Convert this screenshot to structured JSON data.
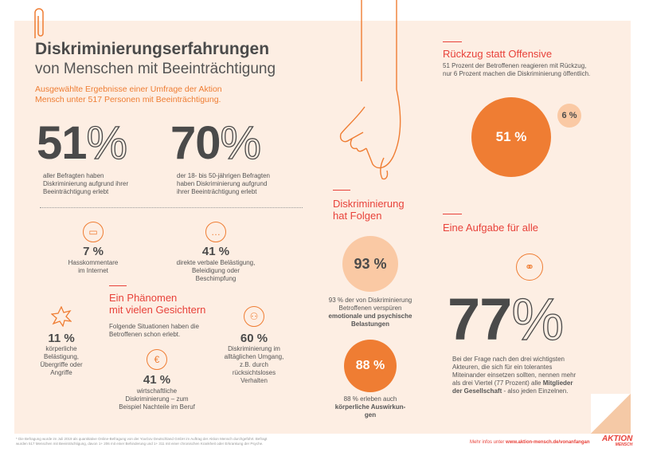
{
  "colors": {
    "accent": "#ef7d33",
    "red": "#e8423a",
    "panel": "#fdeee3",
    "text": "#4a4a4a"
  },
  "header": {
    "title": "Diskriminierungserfahrungen",
    "subtitle": "von Menschen mit Beeinträchtigung",
    "intro1": "Ausgewählte Ergebnisse einer Umfrage der Aktion",
    "intro2": "Mensch unter 517 Personen mit Beeinträchtigung."
  },
  "big_stats": [
    {
      "number": "51",
      "pct": "%",
      "lines": [
        "aller Befragten haben",
        "Diskriminierung aufgrund ihrer",
        "Beeinträchtigung erlebt"
      ]
    },
    {
      "number": "70",
      "pct": "%",
      "lines": [
        "der 18- bis 50-jährigen Befragten",
        "haben Diskriminierung aufgrund",
        "ihrer Beeinträchtigung erlebt"
      ]
    }
  ],
  "stats": {
    "hate": {
      "value": "7 %",
      "lines": [
        "Hasskommentare",
        "im Internet"
      ],
      "icon": "monitor-icon"
    },
    "verbal": {
      "value": "41 %",
      "lines": [
        "direkte verbale Belästigung,",
        "Beleidigung oder",
        "Beschimpfung"
      ],
      "icon": "speech-bubble-icon"
    },
    "physical": {
      "value": "11 %",
      "lines": [
        "körperliche",
        "Belästigung,",
        "Übergriffe oder",
        "Angriffe"
      ],
      "icon": "impact-icon"
    },
    "economic": {
      "value": "41 %",
      "lines": [
        "wirtschaftliche",
        "Diskriminierung – zum",
        "Beispiel Nachteile im Beruf"
      ],
      "icon": "euro-icon"
    },
    "daily": {
      "value": "60 %",
      "lines": [
        "Diskriminierung im",
        "alltäglichen Umgang,",
        "z.B. durch",
        "rücksichtsloses",
        "Verhalten"
      ],
      "icon": "people-icon"
    }
  },
  "phenomenon": {
    "heading1": "Ein Phänomen",
    "heading2": "mit vielen Gesichtern",
    "text1": "Folgende Situationen haben die",
    "text2": "Betroffenen schon erlebt."
  },
  "consequences": {
    "heading1": "Diskriminierung",
    "heading2": "hat Folgen",
    "c93": {
      "value": "93 %",
      "lines": [
        "93 % der von Diskriminierung",
        "Betroffenen verspüren"
      ],
      "bold": [
        "emotionale und psychische",
        "Belastungen"
      ]
    },
    "c88": {
      "value": "88 %",
      "lines": [
        "88 % erleben auch"
      ],
      "bold": [
        "körperliche Auswirkun-",
        "gen"
      ]
    }
  },
  "retreat": {
    "heading": "Rückzug statt Offensive",
    "text1": "51 Prozent der Betroffenen reagieren mit Rückzug,",
    "text2": "nur 6 Prozent machen die Diskriminierung öffentlich.",
    "big": "51 %",
    "small": "6 %"
  },
  "task": {
    "heading": "Eine Aufgabe für alle",
    "number": "77",
    "pct": "%",
    "lines": [
      "Bei der Frage nach den drei wichtigsten",
      "Akteuren, die sich für ein tolerantes",
      "Miteinander einsetzen sollten, nennen mehr",
      "als drei Viertel (77 Prozent) alle"
    ],
    "bold1": "Mitglieder",
    "bold2": "der Gesellschaft",
    "tail": " - also jeden Einzelnen."
  },
  "footer": {
    "note1": "* Die Befragung wurde im Juli 2019 als quantitative Online-Befragung von der YouGov Deutschland GmbH im Auftrag der Aktion Mensch durchgeführt. Befragt",
    "note2": "wurden 517 Menschen mit Beeinträchtigung, davon 1+ 206 mit einer Behinderung und 1+ 311 mit einer chronischen Krankheit oder Erkrankung der Psyche.",
    "more": "Mehr infos unter",
    "url": "www.aktion-mensch.de/vonanfangan",
    "logo": "AKTION",
    "logo_sub": "MENSCH"
  }
}
